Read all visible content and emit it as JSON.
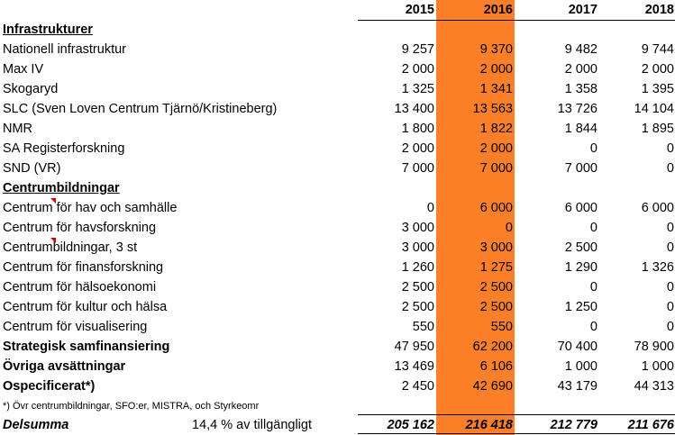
{
  "years": [
    "2015",
    "2016",
    "2017",
    "2018"
  ],
  "rows": [
    {
      "label": "Infrastrukturer",
      "values": [
        "",
        "",
        "",
        ""
      ]
    },
    {
      "label": "Nationell infrastruktur",
      "values": [
        "9 257",
        "9 370",
        "9 482",
        "9 744"
      ]
    },
    {
      "label": "Max IV",
      "values": [
        "2 000",
        "2 000",
        "2 000",
        "2 000"
      ]
    },
    {
      "label": "Skogaryd",
      "values": [
        "1 325",
        "1 341",
        "1 358",
        "1 395"
      ]
    },
    {
      "label": "SLC (Sven Loven Centrum Tjärnö/Kristineberg)",
      "values": [
        "13 400",
        "13 563",
        "13 726",
        "14 104"
      ]
    },
    {
      "label": "NMR",
      "values": [
        "1 800",
        "1 822",
        "1 844",
        "1 895"
      ]
    },
    {
      "label": "SA Registerforskning",
      "values": [
        "2 000",
        "2 000",
        "0",
        "0"
      ]
    },
    {
      "label": "SND (VR)",
      "values": [
        "7 000",
        "7 000",
        "7 000",
        "0"
      ]
    },
    {
      "label": "Centrumbildningar",
      "values": [
        "",
        "",
        "",
        ""
      ]
    },
    {
      "label": "Centrum för hav och samhälle",
      "values": [
        "0",
        "6 000",
        "6 000",
        "6 000"
      ]
    },
    {
      "label": "Centrum för havsforskning",
      "values": [
        "3 000",
        "0",
        "0",
        "0"
      ]
    },
    {
      "label": "Centrumbildningar, 3 st",
      "values": [
        "3 000",
        "3 000",
        "2 500",
        "0"
      ]
    },
    {
      "label": "Centrum för finansforskning",
      "values": [
        "1 260",
        "1 275",
        "1 290",
        "1 326"
      ]
    },
    {
      "label": "Centrum för hälsoekonomi",
      "values": [
        "2 500",
        "2 500",
        "0",
        "0"
      ]
    },
    {
      "label": "Centrum för kultur och hälsa",
      "values": [
        "2 500",
        "2 500",
        "1 250",
        "0"
      ]
    },
    {
      "label": "Centrum för visualisering",
      "values": [
        "550",
        "550",
        "0",
        "0"
      ]
    },
    {
      "label": "Strategisk samfinansiering",
      "values": [
        "47 950",
        "62 200",
        "70 400",
        "78 900"
      ]
    },
    {
      "label": "Övriga avsättningar",
      "values": [
        "13 469",
        "6 106",
        "1 000",
        "1 000"
      ]
    },
    {
      "label": "Ospecificerat*)",
      "values": [
        "2 450",
        "42 690",
        "43 179",
        "44 313"
      ]
    }
  ],
  "footnote": "*) Övr centrumbildningar, SFO:er, MISTRA, och Styrkeomr",
  "total": {
    "label": "Delsumma",
    "note": "14,4 % av tillgängligt",
    "values": [
      "205 162",
      "216 418",
      "212 779",
      "211 676"
    ]
  },
  "colors": {
    "highlight_column": "#fd7f28",
    "comment_marker": "#d00000"
  }
}
